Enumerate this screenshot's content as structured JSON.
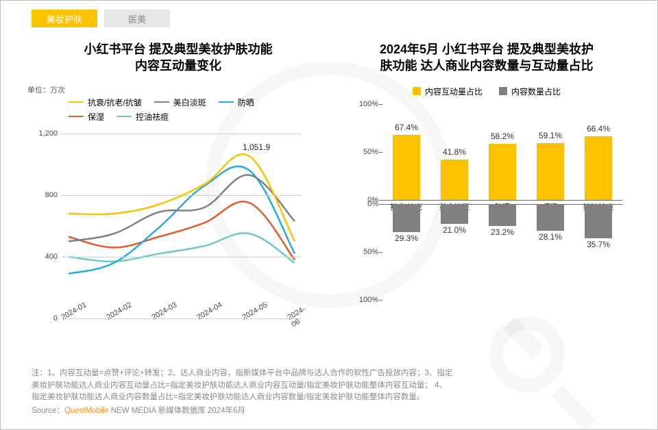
{
  "tabs": {
    "active": "美妆护肤",
    "inactive": "医美"
  },
  "left": {
    "title_l1": "小红书平台 提及典型美妆护肤功能",
    "title_l2": "内容互动量变化",
    "unit": "单位：万次",
    "legend": [
      {
        "label": "抗衰/抗老/抗皱",
        "color": "#fcc200"
      },
      {
        "label": "美白淡斑",
        "color": "#808080"
      },
      {
        "label": "防晒",
        "color": "#2aa8e0"
      },
      {
        "label": "保湿",
        "color": "#e05a2b"
      },
      {
        "label": "控油祛痘",
        "color": "#6ec8c8"
      }
    ],
    "ymax": 1200,
    "yticks": [
      0,
      400,
      800,
      1200
    ],
    "xcats": [
      "2024-01",
      "2024-02",
      "2024-03",
      "2024-04",
      "2024-05",
      "2024-06"
    ],
    "peak_label": "1,051.9",
    "series": {
      "anti": [
        680,
        680,
        740,
        870,
        1051.9,
        500
      ],
      "white": [
        500,
        550,
        690,
        720,
        930,
        630
      ],
      "sun": [
        290,
        360,
        590,
        860,
        960,
        420
      ],
      "moist": [
        530,
        460,
        530,
        620,
        750,
        380
      ],
      "oil": [
        400,
        370,
        420,
        470,
        550,
        360
      ]
    }
  },
  "right": {
    "title_l1": "2024年5月 小红书平台 提及典型美妆护",
    "title_l2": "肤功能 达人商业内容数量与互动量占比",
    "legend": [
      {
        "label": "内容互动量占比",
        "color": "#fcc200"
      },
      {
        "label": "内容数量占比",
        "color": "#808080"
      }
    ],
    "yticks_top": [
      "0%",
      "50%",
      "100%"
    ],
    "yticks_bot": [
      "0%",
      "50%",
      "100%"
    ],
    "cats": [
      "抗衰/抗老/抗皱",
      "美白淡斑",
      "防晒",
      "保湿",
      "控油祛痘"
    ],
    "cat_display": [
      "抗衰/抗老\n/抗皱",
      "美白淡斑",
      "防晒",
      "保湿",
      "控油祛痘"
    ],
    "vals_top": [
      67.4,
      41.8,
      58.2,
      59.1,
      66.4
    ],
    "vals_bot": [
      29.3,
      21.0,
      23.2,
      28.1,
      35.7
    ]
  },
  "notes": {
    "l1": "注：1、内容互动量=点赞+评论+转发；2、达人商业内容，指新媒体平台中品牌与达人合作的软性广告投放内容；3、指定",
    "l2": "美妆护肤功能达人商业内容互动量占比=指定美妆护肤功能达人商业内容互动量/指定美妆护肤功能整体内容互动量； 4、",
    "l3": "指定美妆护肤功能达人商业内容数量占比=指定美妆护肤功能达人商业内容数量/指定美妆护肤功能整体内容数量。",
    "src_prefix": "Source：",
    "src_brand": "QuestMobile",
    "src_suffix": " NEW MEDIA 新媒体数据库 2024年6月"
  },
  "style": {
    "active_tab_bg": "#fcc200",
    "inactive_tab_bg": "#e6e6e6",
    "bar_top_color": "#fcc200",
    "bar_bot_color": "#808080",
    "line_width": 2.5,
    "grid_color": "#cccccc"
  }
}
